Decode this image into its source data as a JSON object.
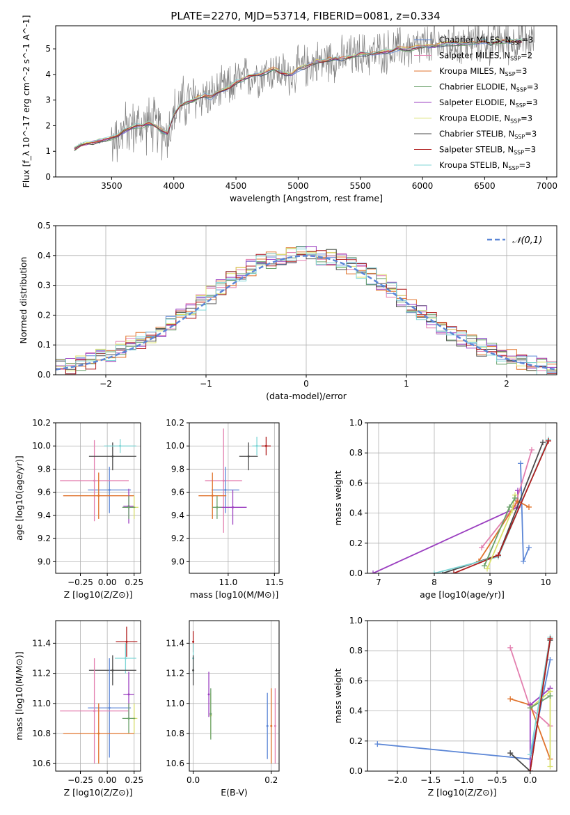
{
  "figure": {
    "title": "PLATE=2270, MJD=53714, FIBERID=0081, z=0.334",
    "colors": {
      "chabrier_miles": "#5b86d6",
      "salpeter_miles": "#e37faf",
      "kroupa_miles": "#e0732c",
      "chabrier_elodie": "#6aa16a",
      "salpeter_elodie": "#9b3fc0",
      "kroupa_elodie": "#d9e06b",
      "chabrier_stelib": "#4a4a4a",
      "salpeter_stelib": "#b01e1e",
      "kroupa_stelib": "#7fd6d6",
      "data": "#808080",
      "normal": "#5b86d6"
    }
  },
  "chart_data": [
    {
      "id": "spectrum",
      "type": "line",
      "xlabel": "wavelength [Angstrom, rest frame]",
      "ylabel": "Flux [f_λ 10^-17 erg cm^-2 s^-1 A^-1]",
      "xlim": [
        3050,
        7080
      ],
      "ylim": [
        0,
        5.9
      ],
      "xticks": [
        3500,
        4000,
        4500,
        5000,
        5500,
        6000,
        6500,
        7000
      ],
      "yticks": [
        0,
        1,
        2,
        3,
        4,
        5
      ],
      "legend_position": "top-right",
      "legend": [
        "Chabrier MILES, N_SSP=3",
        "Salpeter MILES, N_SSP=2",
        "Kroupa MILES, N_SSP=3",
        "Chabrier ELODIE, N_SSP=3",
        "Salpeter ELODIE, N_SSP=3",
        "Kroupa ELODIE, N_SSP=3",
        "Chabrier STELIB, N_SSP=3",
        "Salpeter STELIB, N_SSP=3",
        "Kroupa STELIB, N_SSP=3"
      ],
      "model_curve": {
        "x": [
          3200,
          3250,
          3300,
          3350,
          3400,
          3450,
          3500,
          3550,
          3600,
          3650,
          3700,
          3750,
          3800,
          3850,
          3900,
          3950,
          4000,
          4050,
          4100,
          4150,
          4200,
          4250,
          4300,
          4350,
          4400,
          4450,
          4500,
          4550,
          4600,
          4650,
          4700,
          4750,
          4800,
          4850,
          4900,
          4950,
          5000,
          5050,
          5100,
          5150,
          5200,
          5250,
          5300,
          5350,
          5400,
          5450,
          5500,
          5550,
          5600,
          5650,
          5700,
          5750,
          5800,
          5850,
          5900,
          5950,
          6000,
          6050,
          6100,
          6150,
          6200,
          6250,
          6300,
          6350,
          6400,
          6450,
          6500,
          6550,
          6600,
          6650,
          6700,
          6750,
          6800
        ],
        "y": [
          1.1,
          1.25,
          1.3,
          1.35,
          1.4,
          1.45,
          1.5,
          1.6,
          1.8,
          1.9,
          2.0,
          2.0,
          2.1,
          2.0,
          1.8,
          1.7,
          2.4,
          2.8,
          2.9,
          3.0,
          3.1,
          3.2,
          3.1,
          3.3,
          3.4,
          3.5,
          3.7,
          3.8,
          3.9,
          4.0,
          4.0,
          4.1,
          4.2,
          4.1,
          4.0,
          4.0,
          4.2,
          4.3,
          4.4,
          4.5,
          4.5,
          4.6,
          4.6,
          4.6,
          4.7,
          4.7,
          4.8,
          4.8,
          4.8,
          4.85,
          4.9,
          4.9,
          5.0,
          5.0,
          5.0,
          5.05,
          5.1,
          5.1,
          5.1,
          5.15,
          5.2,
          5.2,
          5.2,
          5.2,
          5.25,
          5.25,
          5.3,
          5.2,
          5.3,
          5.3,
          5.3,
          5.3,
          5.3
        ]
      }
    },
    {
      "id": "residuals",
      "type": "line",
      "xlabel": "(data-model)/error",
      "ylabel": "Normed distribution",
      "xlim": [
        -2.5,
        2.5
      ],
      "ylim": [
        0,
        0.5
      ],
      "xticks": [
        -2,
        -1,
        0,
        1,
        2
      ],
      "yticks": [
        0.0,
        0.1,
        0.2,
        0.3,
        0.4,
        0.5
      ],
      "legend_position": "top-right",
      "legend": [
        "𝒩(0,1)"
      ],
      "hist_envelope": {
        "x": [
          -2.5,
          -2.3,
          -2.1,
          -1.9,
          -1.7,
          -1.5,
          -1.3,
          -1.1,
          -0.9,
          -0.7,
          -0.5,
          -0.3,
          -0.1,
          0.1,
          0.3,
          0.5,
          0.7,
          0.9,
          1.1,
          1.3,
          1.5,
          1.7,
          1.9,
          2.1,
          2.3,
          2.5
        ],
        "y": [
          0.02,
          0.03,
          0.05,
          0.08,
          0.11,
          0.14,
          0.18,
          0.23,
          0.28,
          0.33,
          0.37,
          0.39,
          0.41,
          0.4,
          0.39,
          0.36,
          0.32,
          0.27,
          0.22,
          0.17,
          0.13,
          0.1,
          0.07,
          0.05,
          0.03,
          0.02
        ]
      }
    },
    {
      "id": "age_vs_z",
      "type": "scatter",
      "xlabel": "Z [log10(Z/Z⊙)]",
      "ylabel": "age [log10(age/yr)]",
      "xlim": [
        -0.48,
        0.31
      ],
      "ylim": [
        8.9,
        10.2
      ],
      "xticks": [
        -0.25,
        0.0,
        0.25
      ],
      "xtick_labels": [
        "−0.25",
        "0.00",
        "0.25"
      ],
      "yticks": [
        9.0,
        9.2,
        9.4,
        9.6,
        9.8,
        10.0,
        10.2
      ],
      "points": [
        {
          "model": "chabrier_miles",
          "x": 0.02,
          "y": 9.62,
          "xerr": 0.2,
          "yerr": 0.2
        },
        {
          "model": "salpeter_miles",
          "x": -0.12,
          "y": 9.7,
          "xerr": 0.32,
          "yerr": 0.35
        },
        {
          "model": "kroupa_miles",
          "x": -0.08,
          "y": 9.57,
          "xerr": 0.33,
          "yerr": 0.2
        },
        {
          "model": "chabrier_stelib",
          "x": 0.05,
          "y": 9.91,
          "xerr": 0.22,
          "yerr": 0.12
        },
        {
          "model": "kroupa_stelib",
          "x": 0.12,
          "y": 10.0,
          "xerr": 0.15,
          "yerr": 0.06
        },
        {
          "model": "salpeter_elodie",
          "x": 0.2,
          "y": 9.48,
          "xerr": 0.05,
          "yerr": 0.15
        },
        {
          "model": "kroupa_elodie",
          "x": 0.25,
          "y": 9.47,
          "xerr": 0.04,
          "yerr": 0.1
        },
        {
          "model": "chabrier_elodie",
          "x": 0.2,
          "y": 9.47,
          "xerr": 0.06,
          "yerr": 0.1
        }
      ]
    },
    {
      "id": "age_vs_mass",
      "type": "scatter",
      "xlabel": "mass [log10(M/M⊙)]",
      "ylabel": "",
      "xlim": [
        10.58,
        11.55
      ],
      "ylim": [
        8.9,
        10.2
      ],
      "xticks": [
        11.0,
        11.5
      ],
      "yticks": [
        9.0,
        9.2,
        9.4,
        9.6,
        9.8,
        10.0,
        10.2
      ],
      "points": [
        {
          "model": "salpeter_miles",
          "x": 10.95,
          "y": 9.7,
          "xerr": 0.2,
          "yerr": 0.45
        },
        {
          "model": "chabrier_miles",
          "x": 10.97,
          "y": 9.62,
          "xerr": 0.15,
          "yerr": 0.2
        },
        {
          "model": "kroupa_miles",
          "x": 10.83,
          "y": 9.57,
          "xerr": 0.15,
          "yerr": 0.2
        },
        {
          "model": "salpeter_elodie",
          "x": 11.05,
          "y": 9.47,
          "xerr": 0.15,
          "yerr": 0.15
        },
        {
          "model": "chabrier_elodie",
          "x": 10.88,
          "y": 9.47,
          "xerr": 0.05,
          "yerr": 0.1
        },
        {
          "model": "chabrier_stelib",
          "x": 11.22,
          "y": 9.91,
          "xerr": 0.1,
          "yerr": 0.12
        },
        {
          "model": "kroupa_stelib",
          "x": 11.31,
          "y": 10.0,
          "xerr": 0.05,
          "yerr": 0.08
        },
        {
          "model": "salpeter_stelib",
          "x": 11.41,
          "y": 10.0,
          "xerr": 0.05,
          "yerr": 0.08
        }
      ]
    },
    {
      "id": "weight_vs_age",
      "type": "line",
      "xlabel": "age [log10(age/yr)]",
      "ylabel": "mass weight",
      "xlim": [
        6.8,
        10.2
      ],
      "ylim": [
        0,
        1.0
      ],
      "xticks": [
        7,
        8,
        9,
        10
      ],
      "yticks": [
        0.0,
        0.2,
        0.4,
        0.6,
        0.8,
        1.0
      ],
      "series": [
        {
          "model": "salpeter_elodie",
          "x": [
            6.9,
            9.5,
            9.5
          ],
          "y": [
            0.0,
            0.44,
            0.55
          ]
        },
        {
          "model": "chabrier_miles",
          "x": [
            9.55,
            9.6,
            9.7
          ],
          "y": [
            0.73,
            0.08,
            0.17
          ]
        },
        {
          "model": "salpeter_miles",
          "x": [
            8.85,
            9.45,
            9.75
          ],
          "y": [
            0.17,
            0.45,
            0.82
          ]
        },
        {
          "model": "kroupa_miles",
          "x": [
            8.8,
            9.5,
            9.7
          ],
          "y": [
            0.08,
            0.48,
            0.44
          ]
        },
        {
          "model": "chabrier_stelib",
          "x": [
            8.15,
            9.15,
            9.95
          ],
          "y": [
            0.0,
            0.12,
            0.87
          ]
        },
        {
          "model": "kroupa_stelib",
          "x": [
            8.0,
            9.15,
            10.05
          ],
          "y": [
            0.0,
            0.11,
            0.89
          ]
        },
        {
          "model": "salpeter_stelib",
          "x": [
            8.35,
            9.15,
            10.05
          ],
          "y": [
            0.0,
            0.12,
            0.88
          ]
        },
        {
          "model": "kroupa_elodie",
          "x": [
            8.95,
            9.4,
            9.45
          ],
          "y": [
            0.03,
            0.42,
            0.52
          ]
        },
        {
          "model": "chabrier_elodie",
          "x": [
            8.9,
            9.35,
            9.45
          ],
          "y": [
            0.05,
            0.44,
            0.5
          ]
        }
      ]
    },
    {
      "id": "mass_vs_z",
      "type": "scatter",
      "xlabel": "Z [log10(Z/Z⊙)]",
      "ylabel": "mass [log10(M/M⊙)]",
      "xlim": [
        -0.48,
        0.31
      ],
      "ylim": [
        10.55,
        11.55
      ],
      "xticks": [
        -0.25,
        0.0,
        0.25
      ],
      "xtick_labels": [
        "−0.25",
        "0.00",
        "0.25"
      ],
      "yticks": [
        10.6,
        10.8,
        11.0,
        11.2,
        11.4
      ],
      "points": [
        {
          "model": "salpeter_stelib",
          "x": 0.18,
          "y": 11.41,
          "xerr": 0.1,
          "yerr": 0.1
        },
        {
          "model": "kroupa_stelib",
          "x": 0.17,
          "y": 11.3,
          "xerr": 0.1,
          "yerr": 0.1
        },
        {
          "model": "chabrier_stelib",
          "x": 0.05,
          "y": 11.22,
          "xerr": 0.22,
          "yerr": 0.1
        },
        {
          "model": "salpeter_elodie",
          "x": 0.2,
          "y": 11.06,
          "xerr": 0.05,
          "yerr": 0.15
        },
        {
          "model": "chabrier_miles",
          "x": 0.02,
          "y": 10.97,
          "xerr": 0.2,
          "yerr": 0.33
        },
        {
          "model": "salpeter_miles",
          "x": -0.12,
          "y": 10.95,
          "xerr": 0.32,
          "yerr": 0.35
        },
        {
          "model": "kroupa_elodie",
          "x": 0.25,
          "y": 10.9,
          "xerr": 0.03,
          "yerr": 0.1
        },
        {
          "model": "chabrier_elodie",
          "x": 0.2,
          "y": 10.9,
          "xerr": 0.06,
          "yerr": 0.1
        },
        {
          "model": "kroupa_miles",
          "x": -0.08,
          "y": 10.8,
          "xerr": 0.33,
          "yerr": 0.2
        }
      ]
    },
    {
      "id": "mass_vs_ebv",
      "type": "scatter",
      "xlabel": "E(B-V)",
      "ylabel": "",
      "xlim": [
        -0.01,
        0.22
      ],
      "ylim": [
        10.55,
        11.55
      ],
      "xticks": [
        0.0,
        0.2
      ],
      "yticks": [
        10.6,
        10.8,
        11.0,
        11.2,
        11.4
      ],
      "points": [
        {
          "model": "salpeter_stelib",
          "x": 0.0,
          "y": 11.41,
          "yerr": 0.07
        },
        {
          "model": "kroupa_stelib",
          "x": 0.0,
          "y": 11.3,
          "yerr": 0.1
        },
        {
          "model": "chabrier_stelib",
          "x": 0.0,
          "y": 11.22,
          "yerr": 0.1
        },
        {
          "model": "salpeter_elodie",
          "x": 0.04,
          "y": 11.06,
          "yerr": 0.15
        },
        {
          "model": "kroupa_elodie",
          "x": 0.045,
          "y": 10.92,
          "yerr": 0.15
        },
        {
          "model": "chabrier_elodie",
          "x": 0.045,
          "y": 10.93,
          "yerr": 0.17
        },
        {
          "model": "chabrier_miles",
          "x": 0.19,
          "y": 10.85,
          "yerr": 0.22
        },
        {
          "model": "salpeter_miles",
          "x": 0.21,
          "y": 10.85,
          "yerr": 0.25
        },
        {
          "model": "kroupa_miles",
          "x": 0.2,
          "y": 10.85,
          "yerr": 0.25
        }
      ]
    },
    {
      "id": "weight_vs_z",
      "type": "line",
      "xlabel": "Z [log10(Z/Z⊙)]",
      "ylabel": "mass weight",
      "xlim": [
        -2.45,
        0.4
      ],
      "ylim": [
        0,
        1.0
      ],
      "xticks": [
        -2.0,
        -1.5,
        -1.0,
        -0.5,
        0.0
      ],
      "xtick_labels": [
        "−2.0",
        "−1.5",
        "−1.0",
        "−0.5",
        "0.0"
      ],
      "yticks": [
        0.0,
        0.2,
        0.4,
        0.6,
        0.8,
        1.0
      ],
      "series": [
        {
          "model": "chabrier_miles",
          "x": [
            -2.3,
            0.0,
            0.3
          ],
          "y": [
            0.18,
            0.08,
            0.74
          ]
        },
        {
          "model": "salpeter_miles",
          "x": [
            -0.3,
            0.0,
            0.3
          ],
          "y": [
            0.82,
            0.42,
            0.3
          ]
        },
        {
          "model": "kroupa_miles",
          "x": [
            -0.3,
            0.0,
            0.3
          ],
          "y": [
            0.48,
            0.44,
            0.08
          ]
        },
        {
          "model": "salpeter_elodie",
          "x": [
            0.0,
            0.0,
            0.3
          ],
          "y": [
            0.0,
            0.44,
            0.55
          ]
        },
        {
          "model": "kroupa_elodie",
          "x": [
            0.0,
            0.3,
            0.3
          ],
          "y": [
            0.42,
            0.53,
            0.03
          ]
        },
        {
          "model": "chabrier_elodie",
          "x": [
            0.0,
            0.3
          ],
          "y": [
            0.42,
            0.5
          ]
        },
        {
          "model": "chabrier_stelib",
          "x": [
            -0.3,
            0.0,
            0.3
          ],
          "y": [
            0.12,
            0.0,
            0.87
          ]
        },
        {
          "model": "kroupa_stelib",
          "x": [
            0.0,
            0.3
          ],
          "y": [
            0.11,
            0.89
          ]
        },
        {
          "model": "salpeter_stelib",
          "x": [
            0.0,
            0.3
          ],
          "y": [
            0.0,
            0.88
          ]
        }
      ]
    }
  ]
}
